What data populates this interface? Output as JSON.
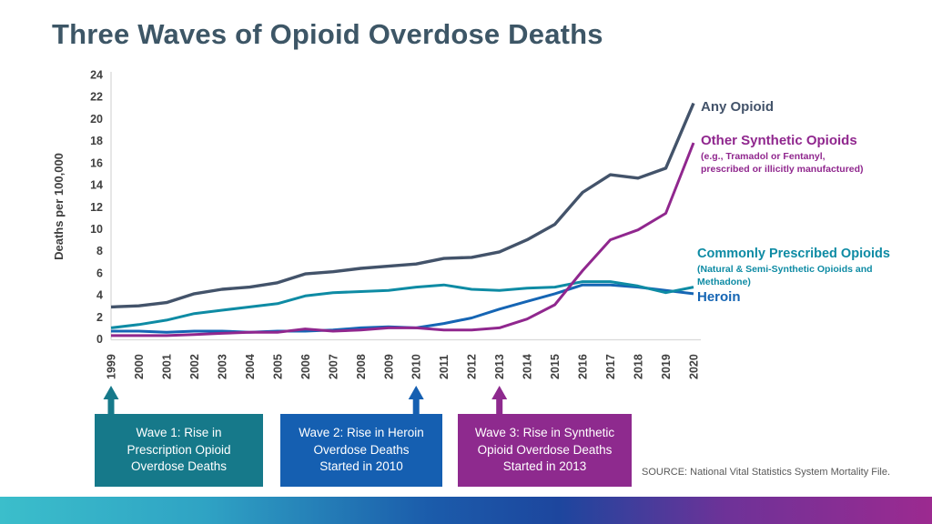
{
  "title": "Three Waves of Opioid Overdose Deaths",
  "chart_data": {
    "type": "line",
    "x": [
      1999,
      2000,
      2001,
      2002,
      2003,
      2004,
      2005,
      2006,
      2007,
      2008,
      2009,
      2010,
      2011,
      2012,
      2013,
      2014,
      2015,
      2016,
      2017,
      2018,
      2019,
      2020
    ],
    "xlabel": "",
    "ylabel": "Deaths per 100,000",
    "ylim": [
      0,
      24
    ],
    "ytick_step": 2,
    "grid": false,
    "legend_position": "right of line ends",
    "series": [
      {
        "name": "Any Opioid",
        "color": "#43536a",
        "values": [
          2.9,
          3.0,
          3.3,
          4.1,
          4.5,
          4.7,
          5.1,
          5.9,
          6.1,
          6.4,
          6.6,
          6.8,
          7.3,
          7.4,
          7.9,
          9.0,
          10.4,
          13.3,
          14.9,
          14.6,
          15.5,
          21.4
        ]
      },
      {
        "name": "Other Synthetic Opioids",
        "sublabel": "(e.g., Tramadol or Fentanyl, prescribed or illicitly manufactured)",
        "color": "#90278e",
        "values": [
          0.3,
          0.3,
          0.3,
          0.4,
          0.5,
          0.6,
          0.6,
          0.9,
          0.7,
          0.8,
          1.0,
          1.0,
          0.8,
          0.8,
          1.0,
          1.8,
          3.1,
          6.2,
          9.0,
          9.9,
          11.4,
          17.8
        ]
      },
      {
        "name": "Commonly Prescribed Opioids",
        "sublabel": "(Natural & Semi-Synthetic Opioids and Methadone)",
        "color": "#0e8ba4",
        "values": [
          1.0,
          1.3,
          1.7,
          2.3,
          2.6,
          2.9,
          3.2,
          3.9,
          4.2,
          4.3,
          4.4,
          4.7,
          4.9,
          4.5,
          4.4,
          4.6,
          4.7,
          5.2,
          5.2,
          4.8,
          4.2,
          4.7
        ]
      },
      {
        "name": "Heroin",
        "color": "#1565b4",
        "values": [
          0.7,
          0.7,
          0.6,
          0.7,
          0.7,
          0.6,
          0.7,
          0.7,
          0.8,
          1.0,
          1.1,
          1.0,
          1.4,
          1.9,
          2.7,
          3.4,
          4.1,
          4.9,
          4.9,
          4.7,
          4.4,
          4.1
        ]
      }
    ]
  },
  "waves": [
    {
      "label": "Wave 1: Rise in Prescription Opioid Overdose Deaths",
      "color": "#16798a",
      "arrow_year": 1999
    },
    {
      "label": "Wave 2: Rise in Heroin Overdose Deaths Started in 2010",
      "color": "#155fb1",
      "arrow_year": 2010
    },
    {
      "label": "Wave 3: Rise in Synthetic Opioid Overdose Deaths Started in 2013",
      "color": "#8e2a8e",
      "arrow_year": 2013
    }
  ],
  "source": "SOURCE: National Vital Statistics System Mortality File.",
  "colors": {
    "title": "#3d5666",
    "axis_text": "#3f3f3f",
    "axis_line": "#d9d9d9",
    "source_text": "#585858",
    "gradient": [
      "#3bbecb",
      "#2fa3c4",
      "#1b5cab",
      "#1d469e",
      "#6e3298",
      "#9c2a90"
    ]
  }
}
